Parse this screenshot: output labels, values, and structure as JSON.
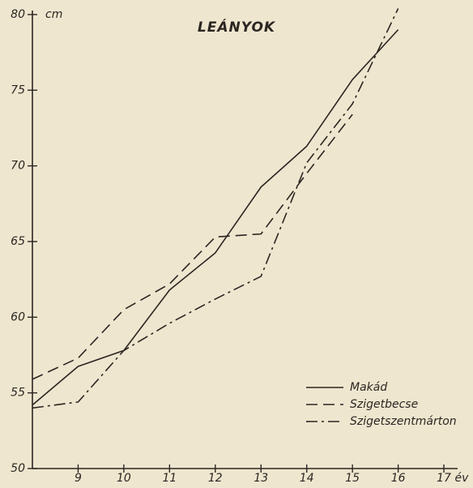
{
  "chart_data": {
    "type": "line",
    "title": "LEÁNYOK",
    "y_unit": "cm",
    "x_unit": "év",
    "x": [
      8,
      9,
      10,
      11,
      12,
      13,
      14,
      15,
      16
    ],
    "series": [
      {
        "name": "Makád",
        "color": "#2b2622",
        "dash": "none",
        "values": [
          54.2,
          56.75,
          57.8,
          61.8,
          64.25,
          68.6,
          71.3,
          75.7,
          79.0
        ]
      },
      {
        "name": "Szigetbecse",
        "color": "#2b2622",
        "dash": "14 7",
        "values": [
          55.9,
          57.3,
          60.5,
          62.2,
          65.3,
          65.5,
          69.5,
          73.4,
          null
        ]
      },
      {
        "name": "Szigetszentmárton",
        "color": "#2b2622",
        "dash": "14 5 3 5",
        "values": [
          54.0,
          54.4,
          57.8,
          59.6,
          61.2,
          62.7,
          70.2,
          74.1,
          80.4
        ]
      }
    ],
    "xlim": [
      8,
      17.3
    ],
    "xticks": [
      9,
      10,
      11,
      12,
      13,
      14,
      15,
      16,
      17
    ],
    "ylim": [
      50,
      80.8
    ],
    "yticks": [
      50,
      55,
      60,
      65,
      70,
      75,
      80
    ],
    "grid": false,
    "legend": "lower right"
  }
}
